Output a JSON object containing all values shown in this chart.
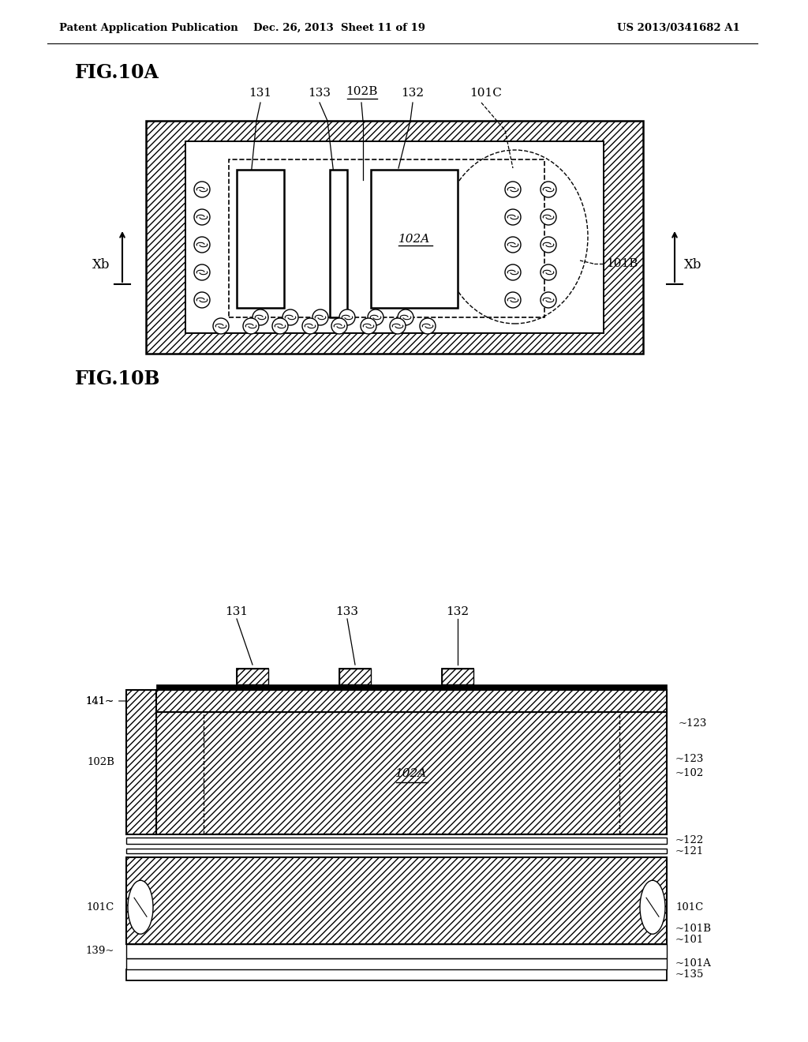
{
  "bg_color": "#ffffff",
  "header_left": "Patent Application Publication",
  "header_mid": "Dec. 26, 2013  Sheet 11 of 19",
  "header_right": "US 2013/0341682 A1",
  "fig_label_A": "FIG.10A",
  "fig_label_B": "FIG.10B"
}
